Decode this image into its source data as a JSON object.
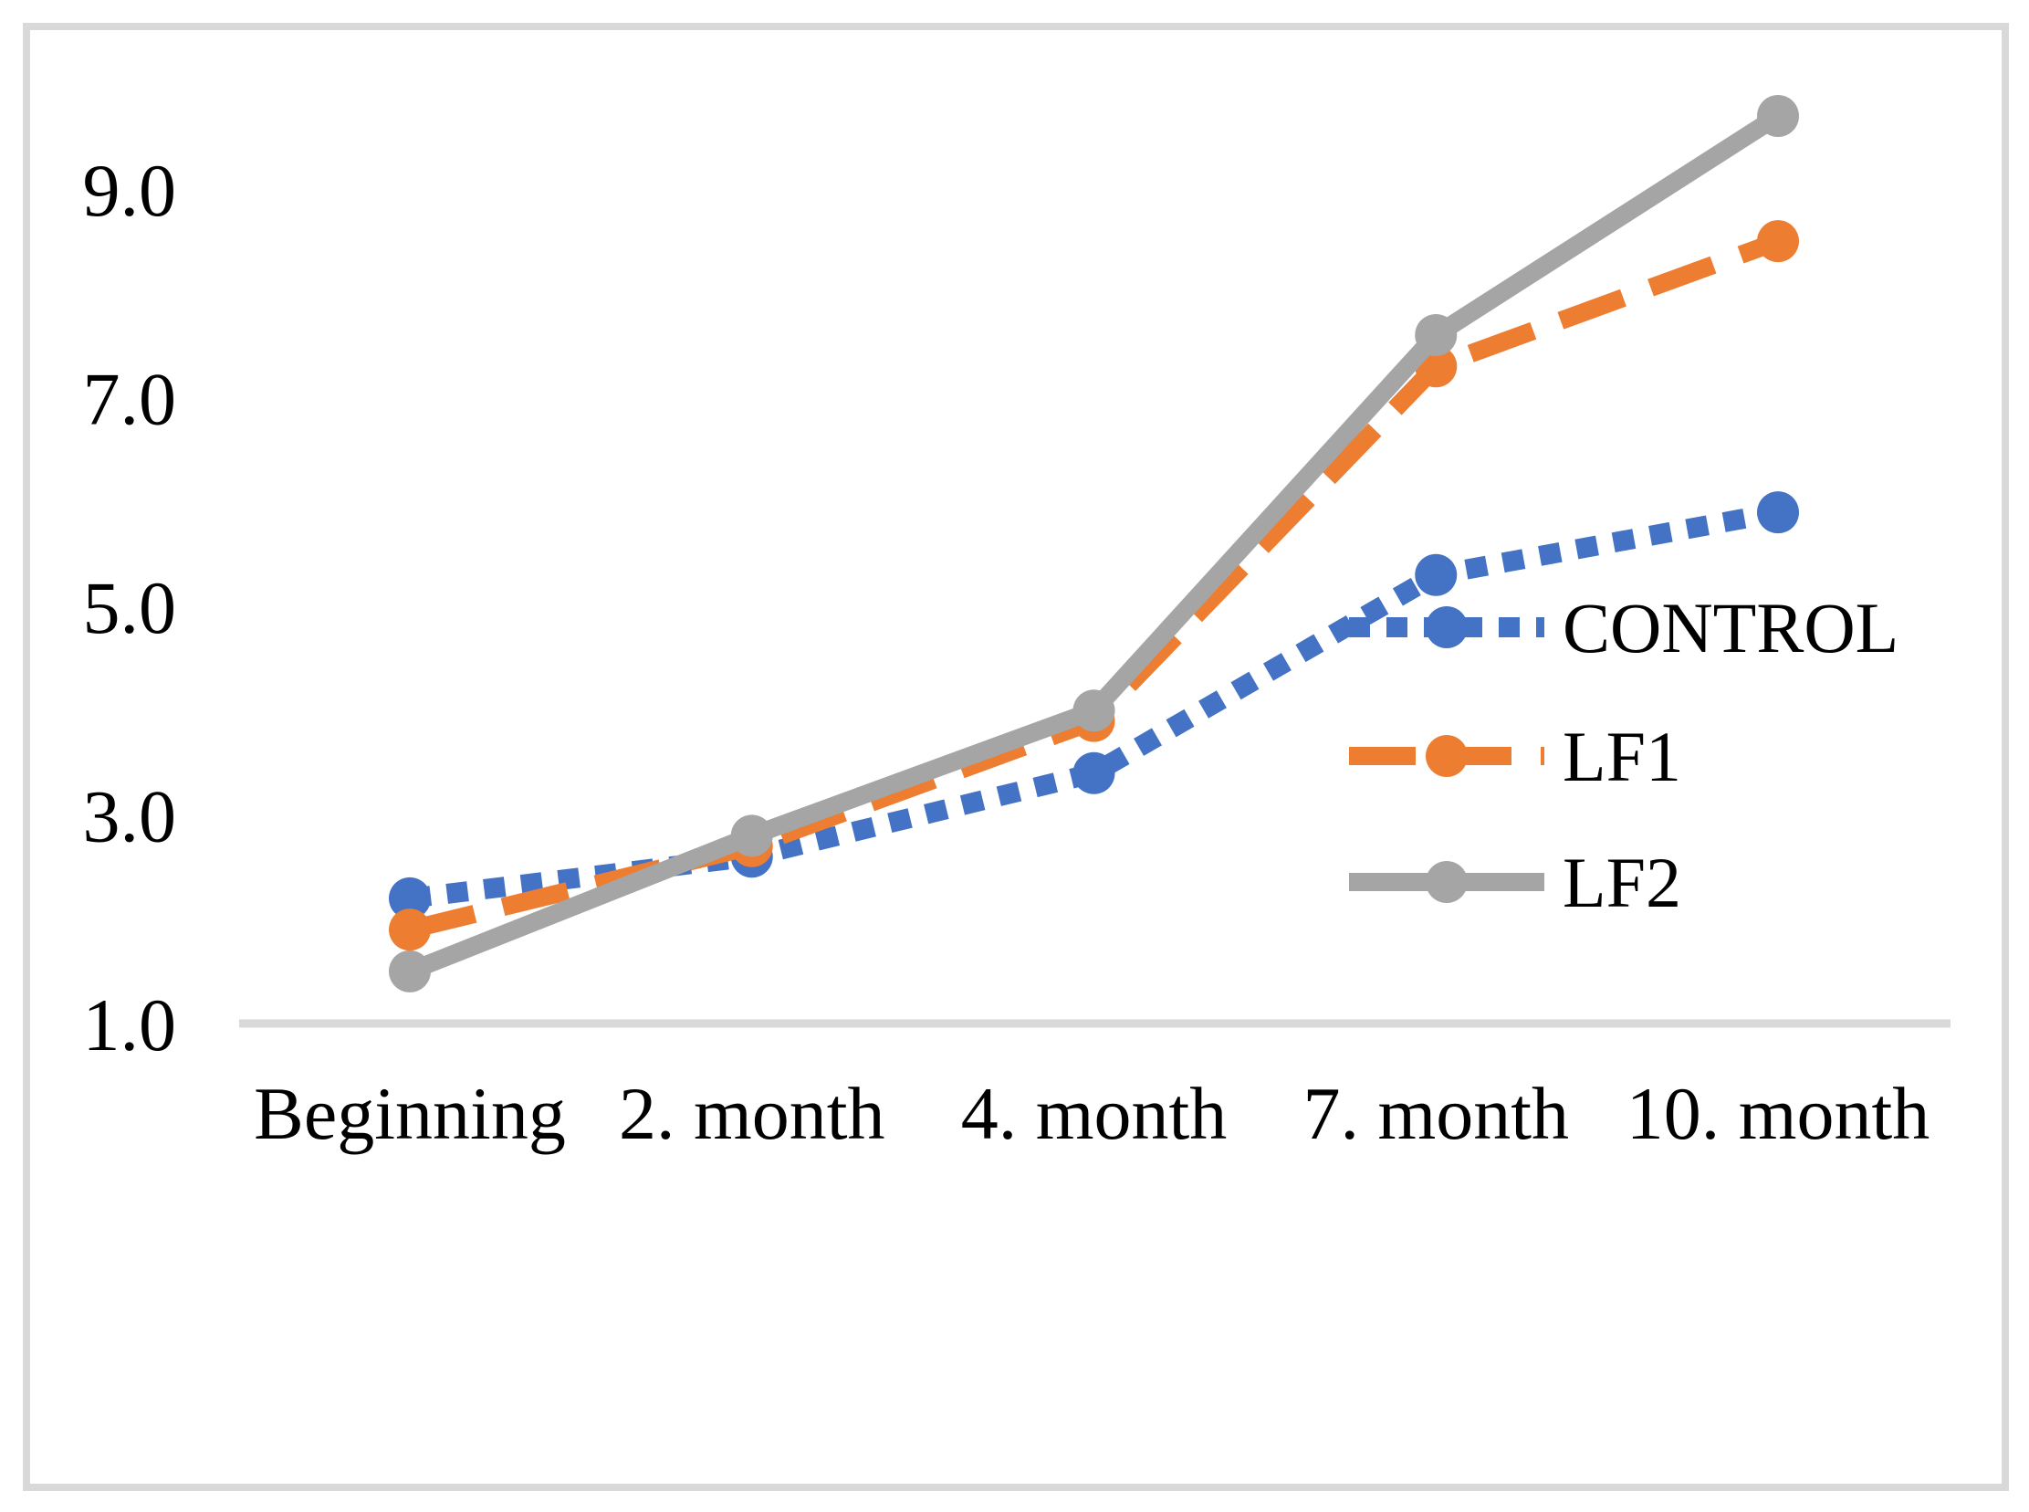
{
  "figure": {
    "background": "#FFFFFF",
    "border_color": "#D9D9D9",
    "axis_color": "#D9D9D9",
    "text_color": "#000000"
  },
  "chart_data": {
    "type": "line",
    "title": "",
    "xlabel": "",
    "ylabel": "",
    "grid": false,
    "legend_position": "middle-right",
    "categories": [
      "Beginning",
      "2. month",
      "4. month",
      "7. month",
      "10. month"
    ],
    "series": [
      {
        "name": "CONTROL",
        "color": "#4472C4",
        "line_style": "dotted",
        "marker": "circle",
        "values": [
          2.2,
          2.6,
          3.4,
          5.3,
          5.9
        ]
      },
      {
        "name": "LF1",
        "color": "#ED7D31",
        "line_style": "dashed",
        "marker": "circle",
        "values": [
          1.9,
          2.7,
          3.9,
          7.3,
          8.5
        ]
      },
      {
        "name": "LF2",
        "color": "#A5A5A5",
        "line_style": "solid",
        "marker": "circle",
        "values": [
          1.5,
          2.8,
          4.0,
          7.6,
          9.7
        ]
      }
    ],
    "yticks": [
      {
        "value": 9,
        "label": "9.0"
      },
      {
        "value": 7,
        "label": "7.0"
      },
      {
        "value": 5,
        "label": "5.0"
      },
      {
        "value": 3,
        "label": "3.0"
      },
      {
        "value": 1,
        "label": "1.0"
      }
    ],
    "ylim": [
      1.0,
      10.2
    ],
    "legend_labels": [
      "CONTROL",
      "LF1",
      "LF2"
    ]
  }
}
